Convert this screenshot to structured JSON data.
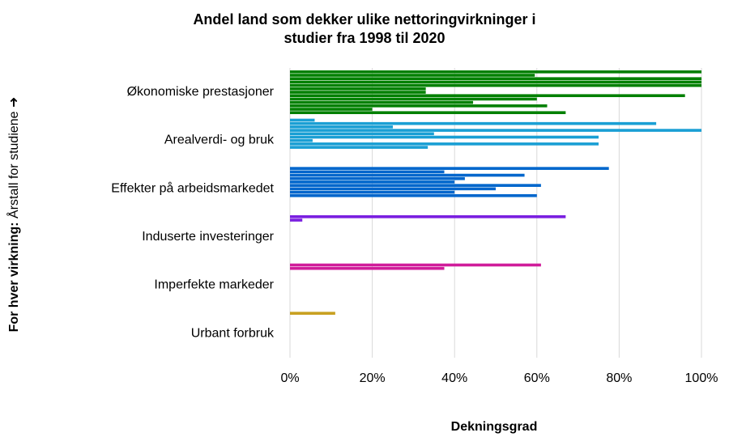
{
  "chart_data": {
    "type": "bar",
    "orientation": "horizontal",
    "title": [
      "Andel land som dekker ulike nettoringvirkninger i",
      "studier fra 1998 til 2020"
    ],
    "y_label_bold": "For hver virkning:",
    "y_label_rest": "Årstall for studiene ➜",
    "x_label": "Dekningsgrad",
    "categories": [
      "Økonomiske prestasjoner",
      "Arealverdi- og bruk",
      "Effekter på arbeidsmarkedet",
      "Induserte investeringer",
      "Imperfekte markeder",
      "Urbant forbruk"
    ],
    "colors": [
      "#008000",
      "#1a9fd4",
      "#0066cc",
      "#7a1fe0",
      "#d01c9a",
      "#c8a020"
    ],
    "values": [
      [
        100,
        59.5,
        100,
        100,
        100,
        33,
        33,
        96,
        60,
        44.5,
        62.5,
        20,
        67
      ],
      [
        6,
        89,
        25,
        100,
        35,
        75,
        5.5,
        75,
        33.5
      ],
      [
        77.5,
        37.5,
        57,
        42.5,
        40,
        61,
        50,
        40,
        60
      ],
      [
        67,
        3
      ],
      [
        61,
        37.5
      ],
      [
        11
      ]
    ],
    "xlim": [
      0,
      100
    ],
    "xticks": [
      {
        "value": 0,
        "label": "0%"
      },
      {
        "value": 20,
        "label": "20%"
      },
      {
        "value": 40,
        "label": "40%"
      },
      {
        "value": 60,
        "label": "60%"
      },
      {
        "value": 80,
        "label": "80%"
      },
      {
        "value": 100,
        "label": "100%"
      }
    ],
    "grid": true
  }
}
